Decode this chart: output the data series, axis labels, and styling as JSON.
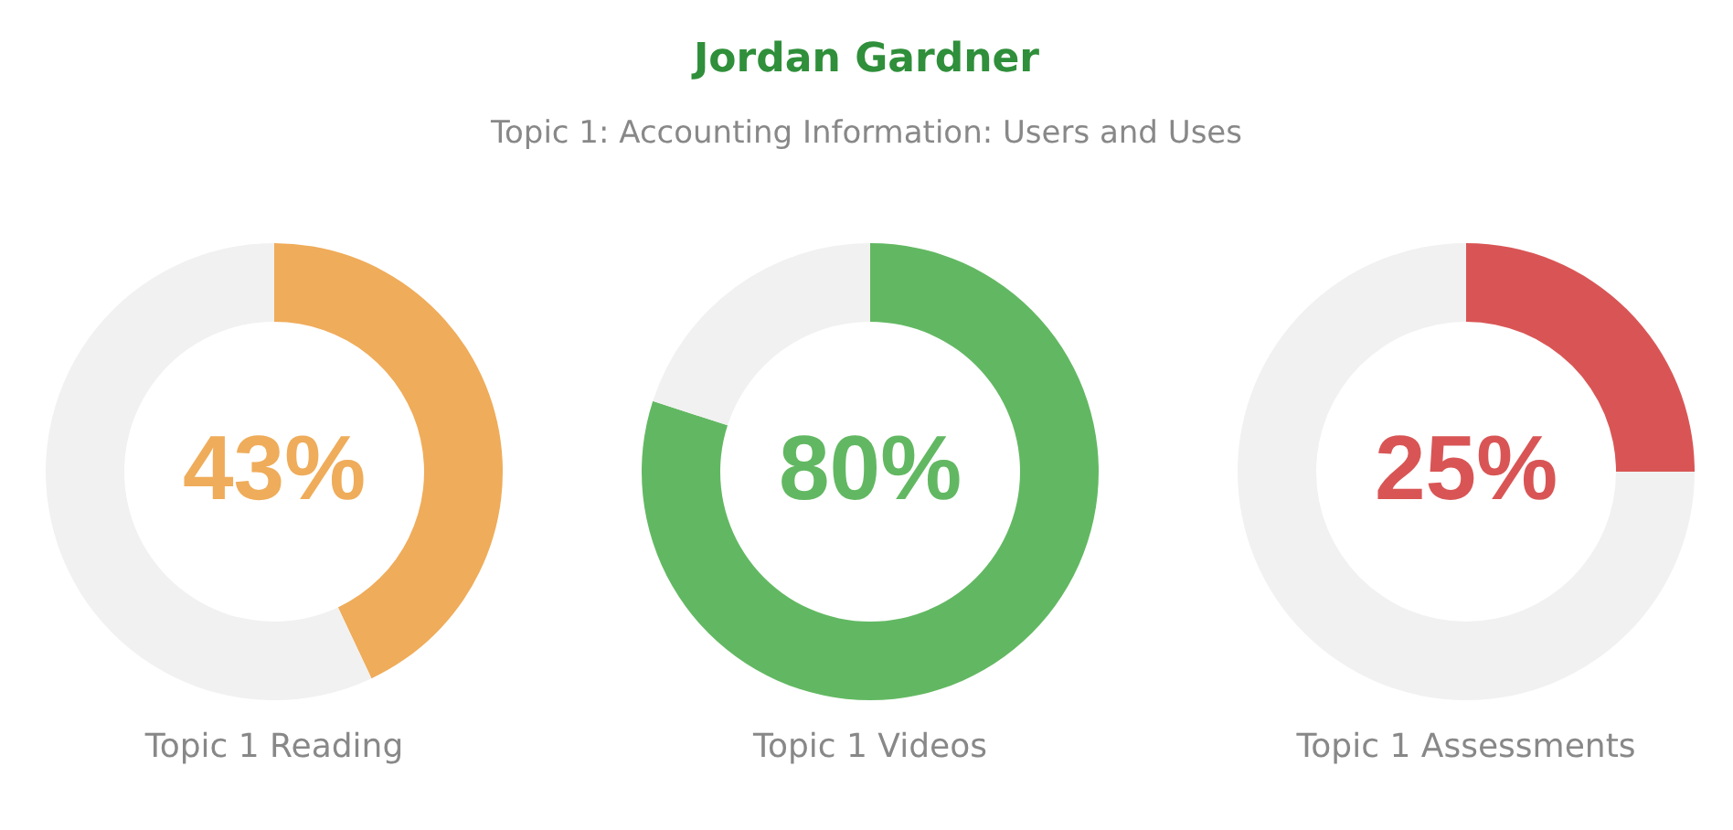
{
  "chart_data": [
    {
      "type": "donut",
      "xlabel": "Topic 1 Reading",
      "categories": [
        null,
        null
      ],
      "values": [
        43,
        57
      ],
      "colors": [
        "#efac5a",
        "#f1f1f1"
      ],
      "value_labels": [
        "43%",
        null
      ]
    },
    {
      "type": "donut",
      "title": "Jordan Gardner",
      "subtitle": "Topic 1: Accounting Information: Users and Uses",
      "xlabel": "Topic 1 Videos",
      "categories": [
        null,
        null
      ],
      "values": [
        80,
        20
      ],
      "colors": [
        "#62b862",
        "#f1f1f1"
      ],
      "value_labels": [
        "80%",
        null
      ]
    },
    {
      "type": "donut",
      "xlabel": "Topic 1 Assessments",
      "categories": [
        null,
        null
      ],
      "values": [
        25,
        75
      ],
      "colors": [
        "#d95555",
        "#f1f1f1"
      ],
      "value_labels": [
        "25%",
        null
      ]
    }
  ]
}
